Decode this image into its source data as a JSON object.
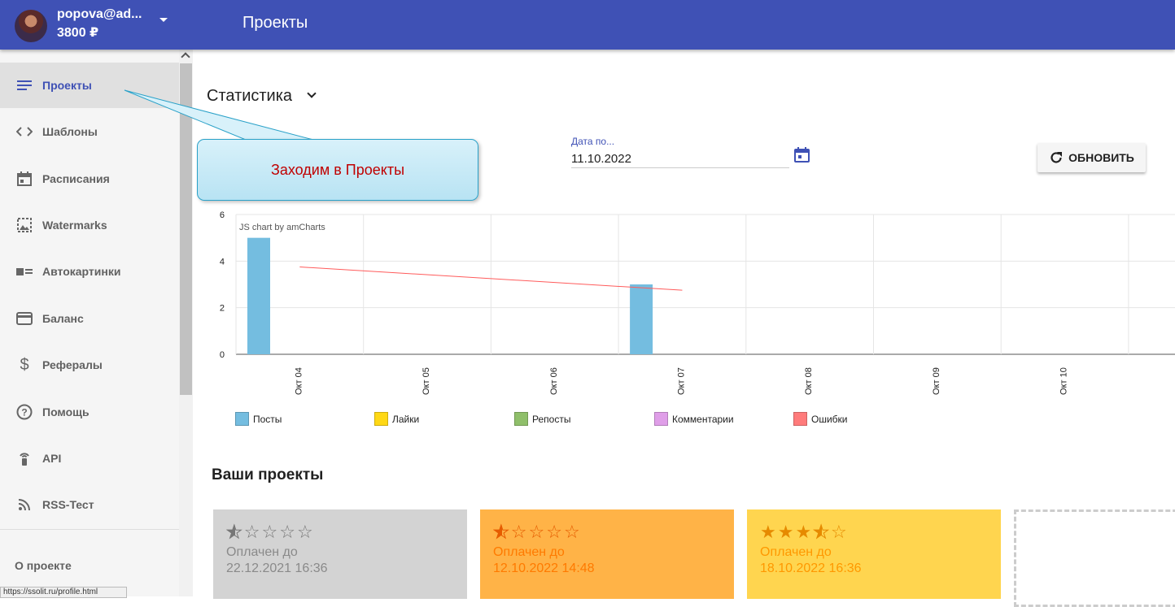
{
  "topbar": {
    "email": "popova@ad...",
    "balance": "3800 ₽",
    "page_title": "Проекты",
    "color": "#3f51b5"
  },
  "sidebar": {
    "items": [
      {
        "label": "Проекты",
        "icon": "list-icon",
        "active": true
      },
      {
        "label": "Шаблоны",
        "icon": "code-icon"
      },
      {
        "label": "Расписания",
        "icon": "calendar-icon"
      },
      {
        "label": "Watermarks",
        "icon": "image-icon"
      },
      {
        "label": "Автокартинки",
        "icon": "picture-text-icon"
      },
      {
        "label": "Баланс",
        "icon": "credit-card-icon"
      },
      {
        "label": "Рефералы",
        "icon": "dollar-icon"
      },
      {
        "label": "Помощь",
        "icon": "help-icon"
      },
      {
        "label": "API",
        "icon": "wifi-tower-icon"
      },
      {
        "label": "RSS-Тест",
        "icon": "rss-icon"
      }
    ],
    "about": "О проекте",
    "status_url": "https://ssolit.ru/profile.html"
  },
  "stats": {
    "title": "Статистика",
    "date_to_label": "Дата по...",
    "date_to_value": "11.10.2022",
    "refresh_label": "ОБНОВИТЬ"
  },
  "chart_data": {
    "type": "bar",
    "credit": "JS chart by amCharts",
    "categories": [
      "Окт 04",
      "Окт 05",
      "Окт 06",
      "Окт 07",
      "Окт 08",
      "Окт 09",
      "Окт 10"
    ],
    "ylim": [
      0,
      6
    ],
    "yticks": [
      0,
      2,
      4,
      6
    ],
    "series": [
      {
        "name": "Посты",
        "color": "#74bde0",
        "values": [
          5,
          0,
          0,
          3,
          0,
          0,
          0
        ]
      },
      {
        "name": "Лайки",
        "color": "#ffd815",
        "values": [
          0,
          0,
          0,
          0,
          0,
          0,
          0
        ]
      },
      {
        "name": "Репосты",
        "color": "#8fbf6a",
        "values": [
          0,
          0,
          0,
          0,
          0,
          0,
          0
        ]
      },
      {
        "name": "Комментарии",
        "color": "#df9ee8",
        "values": [
          0,
          0,
          0,
          0,
          0,
          0,
          0
        ]
      },
      {
        "name": "Ошибки",
        "color": "#ff7b7b",
        "values": [
          0,
          0,
          0,
          0,
          0,
          0,
          0
        ]
      }
    ],
    "trend_line": {
      "color": "#ff5b5b",
      "from": {
        "x": "Окт 04",
        "y": 3.75
      },
      "to": {
        "x": "Окт 07",
        "y": 2.75
      }
    },
    "grid": true,
    "legend_position": "bottom"
  },
  "projects": {
    "title": "Ваши проекты",
    "cards": [
      {
        "rating": 0.5,
        "paid_label": "Оплачен до",
        "paid_until": "22.12.2021 16:36",
        "bg": "#d3d3d3",
        "fg": "#8a8a8a",
        "star": "#777777"
      },
      {
        "rating": 0.5,
        "paid_label": "Оплачен до",
        "paid_until": "12.10.2022 14:48",
        "bg": "#ffb347",
        "fg": "#ff7a00",
        "star": "#e65c00"
      },
      {
        "rating": 3.5,
        "paid_label": "Оплачен до",
        "paid_until": "18.10.2022 16:36",
        "bg": "#ffd54f",
        "fg": "#ff9800",
        "star": "#e68a00"
      }
    ]
  },
  "callout": {
    "text": "Заходим в Проекты"
  }
}
